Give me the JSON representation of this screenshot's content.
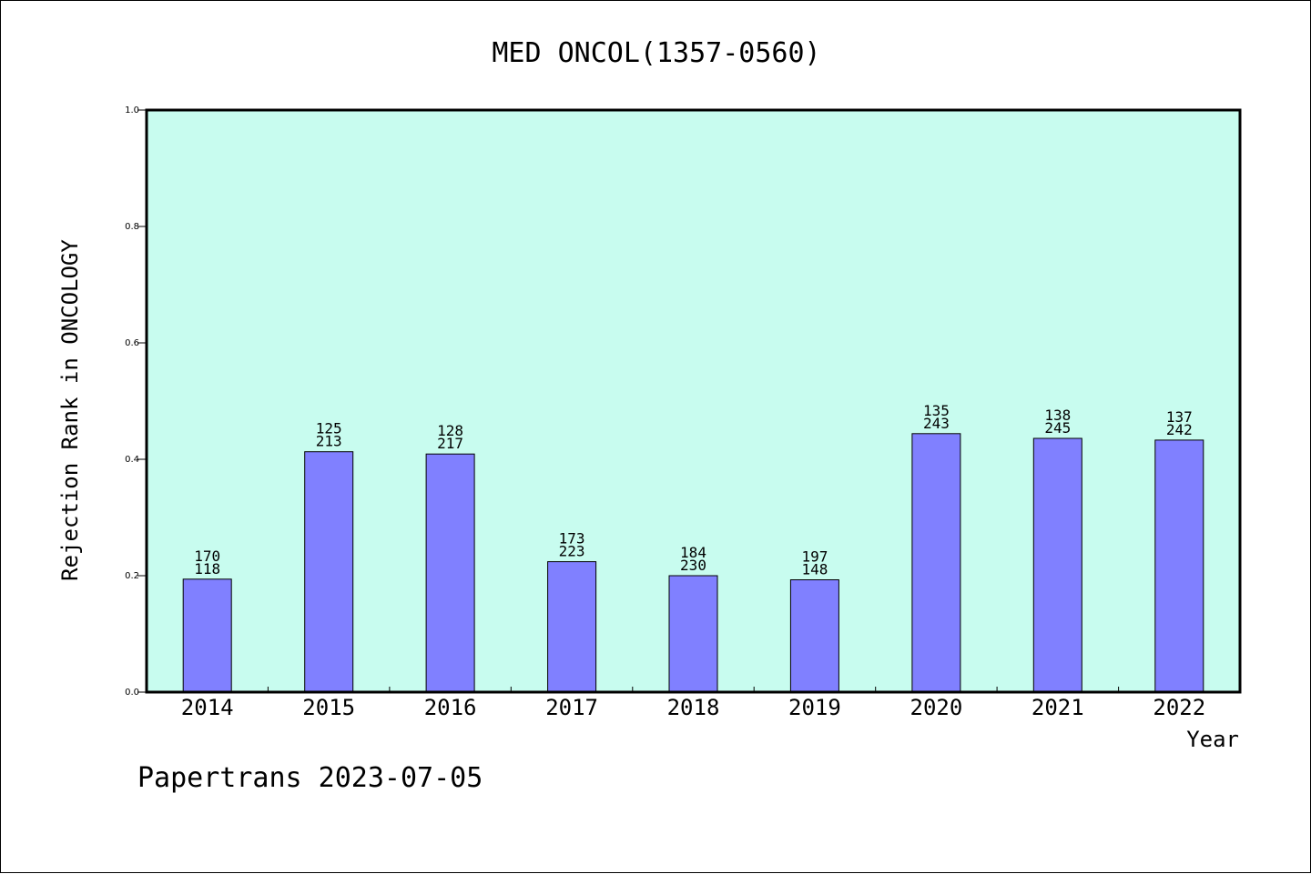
{
  "chart_data": {
    "type": "bar",
    "title": "MED ONCOL(1357-0560)",
    "xlabel": "Year",
    "ylabel": "Rejection Rank in ONCOLOGY",
    "footer": "Papertrans 2023-07-05",
    "categories": [
      "2014",
      "2015",
      "2016",
      "2017",
      "2018",
      "2019",
      "2020",
      "2021",
      "2022"
    ],
    "values": [
      0.194,
      0.413,
      0.409,
      0.224,
      0.2,
      0.193,
      0.444,
      0.436,
      0.433
    ],
    "rank_top": [
      "170",
      "125",
      "128",
      "173",
      "184",
      "197",
      "135",
      "138",
      "137"
    ],
    "rank_bottom": [
      "118",
      "213",
      "217",
      "223",
      "230",
      "148",
      "243",
      "245",
      "242"
    ],
    "ylim": [
      0,
      1.0
    ],
    "yticks": [
      "0.0",
      "0.2",
      "0.4",
      "0.6",
      "0.8",
      "1.0"
    ],
    "grid": false,
    "colors": {
      "plot_background": "#c8fcef",
      "bar_fill": "#8080ff",
      "axis": "#000000"
    }
  }
}
